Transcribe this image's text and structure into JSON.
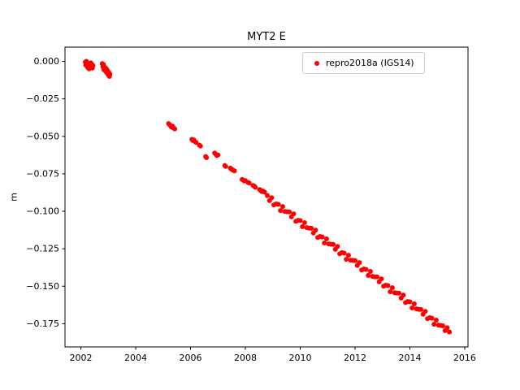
{
  "chart": {
    "title": "MYT2 E",
    "ylabel": "m",
    "xlabel": "",
    "legend_label": "repro2018a (IGS14)"
  },
  "chart_data": {
    "type": "scatter",
    "title": "MYT2 E",
    "xlabel": "",
    "ylabel": "m",
    "legend": [
      "repro2018a (IGS14)"
    ],
    "legend_position": "upper right",
    "marker_color": "#ff0000",
    "marker_radius": 3,
    "grid": false,
    "xlim": [
      2001.42,
      2016.12
    ],
    "ylim": [
      -0.1905,
      0.0095
    ],
    "x_ticks": [
      2002,
      2004,
      2006,
      2008,
      2010,
      2012,
      2014,
      2016
    ],
    "y_ticks": [
      {
        "value": 0.0,
        "label": "0.000"
      },
      {
        "value": -0.025,
        "label": "−0.025"
      },
      {
        "value": -0.05,
        "label": "−0.050"
      },
      {
        "value": -0.075,
        "label": "−0.075"
      },
      {
        "value": -0.1,
        "label": "−0.100"
      },
      {
        "value": -0.125,
        "label": "−0.125"
      },
      {
        "value": -0.15,
        "label": "−0.150"
      },
      {
        "value": -0.175,
        "label": "−0.175"
      }
    ],
    "series_name": "repro2018a (IGS14)",
    "points": [
      [
        2002.16,
        -0.0005
      ],
      [
        2002.18,
        -0.0025
      ],
      [
        2002.2,
        0.0
      ],
      [
        2002.22,
        -0.0018
      ],
      [
        2002.24,
        -0.004
      ],
      [
        2002.26,
        -0.0012
      ],
      [
        2002.28,
        -0.003
      ],
      [
        2002.3,
        -0.005
      ],
      [
        2002.32,
        -0.0022
      ],
      [
        2002.34,
        -0.0042
      ],
      [
        2002.36,
        -0.001
      ],
      [
        2002.38,
        -0.0032
      ],
      [
        2002.4,
        -0.002
      ],
      [
        2002.42,
        -0.0045
      ],
      [
        2002.44,
        -0.0028
      ],
      [
        2002.78,
        -0.0015
      ],
      [
        2002.8,
        -0.0035
      ],
      [
        2002.82,
        -0.002
      ],
      [
        2002.84,
        -0.0055
      ],
      [
        2002.86,
        -0.0038
      ],
      [
        2002.88,
        -0.006
      ],
      [
        2002.9,
        -0.0045
      ],
      [
        2002.92,
        -0.007
      ],
      [
        2002.94,
        -0.0052
      ],
      [
        2002.96,
        -0.008
      ],
      [
        2002.98,
        -0.0065
      ],
      [
        2003.0,
        -0.009
      ],
      [
        2003.02,
        -0.0075
      ],
      [
        2003.04,
        -0.01
      ],
      [
        2003.06,
        -0.0085
      ],
      [
        2005.2,
        -0.0415
      ],
      [
        2005.23,
        -0.0422
      ],
      [
        2005.26,
        -0.0428
      ],
      [
        2005.3,
        -0.0438
      ],
      [
        2005.34,
        -0.0432
      ],
      [
        2005.38,
        -0.0445
      ],
      [
        2005.42,
        -0.045
      ],
      [
        2006.05,
        -0.052
      ],
      [
        2006.08,
        -0.0528
      ],
      [
        2006.12,
        -0.0524
      ],
      [
        2006.16,
        -0.0535
      ],
      [
        2006.2,
        -0.054
      ],
      [
        2006.32,
        -0.0558
      ],
      [
        2006.36,
        -0.0565
      ],
      [
        2006.55,
        -0.0635
      ],
      [
        2006.58,
        -0.0642
      ],
      [
        2006.88,
        -0.0612
      ],
      [
        2006.92,
        -0.062
      ],
      [
        2006.96,
        -0.0628
      ],
      [
        2007.0,
        -0.0625
      ],
      [
        2007.25,
        -0.0695
      ],
      [
        2007.28,
        -0.07
      ],
      [
        2007.45,
        -0.0712
      ],
      [
        2007.48,
        -0.0718
      ],
      [
        2007.52,
        -0.0722
      ],
      [
        2007.56,
        -0.0728
      ],
      [
        2007.6,
        -0.073
      ],
      [
        2007.88,
        -0.0788
      ],
      [
        2007.92,
        -0.0792
      ],
      [
        2007.96,
        -0.0798
      ],
      [
        2008.0,
        -0.0795
      ],
      [
        2008.1,
        -0.0808
      ],
      [
        2008.14,
        -0.0812
      ],
      [
        2008.28,
        -0.0828
      ],
      [
        2008.32,
        -0.0832
      ],
      [
        2008.36,
        -0.084
      ],
      [
        2008.52,
        -0.0855
      ],
      [
        2008.56,
        -0.0862
      ],
      [
        2008.6,
        -0.0868
      ],
      [
        2008.64,
        -0.0865
      ],
      [
        2008.7,
        -0.0872
      ],
      [
        2008.8,
        -0.0896
      ],
      [
        2008.88,
        -0.0929
      ],
      [
        2008.96,
        -0.091
      ],
      [
        2009.04,
        -0.0958
      ],
      [
        2009.12,
        -0.0951
      ],
      [
        2009.2,
        -0.0954
      ],
      [
        2009.28,
        -0.0995
      ],
      [
        2009.36,
        -0.0968
      ],
      [
        2009.44,
        -0.1001
      ],
      [
        2009.52,
        -0.1003
      ],
      [
        2009.6,
        -0.1004
      ],
      [
        2009.68,
        -0.1037
      ],
      [
        2009.76,
        -0.1018
      ],
      [
        2009.84,
        -0.1067
      ],
      [
        2009.92,
        -0.106
      ],
      [
        2010.0,
        -0.1062
      ],
      [
        2010.08,
        -0.1103
      ],
      [
        2010.16,
        -0.1076
      ],
      [
        2010.24,
        -0.1109
      ],
      [
        2010.32,
        -0.1112
      ],
      [
        2010.4,
        -0.1113
      ],
      [
        2010.48,
        -0.1145
      ],
      [
        2010.56,
        -0.1126
      ],
      [
        2010.64,
        -0.1175
      ],
      [
        2010.72,
        -0.1168
      ],
      [
        2010.8,
        -0.1171
      ],
      [
        2010.88,
        -0.1212
      ],
      [
        2010.96,
        -0.1184
      ],
      [
        2011.04,
        -0.1217
      ],
      [
        2011.12,
        -0.122
      ],
      [
        2011.2,
        -0.1221
      ],
      [
        2011.28,
        -0.1254
      ],
      [
        2011.36,
        -0.1235
      ],
      [
        2011.44,
        -0.1284
      ],
      [
        2011.52,
        -0.1276
      ],
      [
        2011.6,
        -0.1279
      ],
      [
        2011.68,
        -0.132
      ],
      [
        2011.76,
        -0.1293
      ],
      [
        2011.84,
        -0.1326
      ],
      [
        2011.92,
        -0.1328
      ],
      [
        2012.0,
        -0.1329
      ],
      [
        2012.08,
        -0.1362
      ],
      [
        2012.16,
        -0.1343
      ],
      [
        2012.24,
        -0.1392
      ],
      [
        2012.32,
        -0.1385
      ],
      [
        2012.4,
        -0.1388
      ],
      [
        2012.48,
        -0.1428
      ],
      [
        2012.56,
        -0.1401
      ],
      [
        2012.64,
        -0.1434
      ],
      [
        2012.72,
        -0.1437
      ],
      [
        2012.8,
        -0.1438
      ],
      [
        2012.88,
        -0.1471
      ],
      [
        2012.96,
        -0.1451
      ],
      [
        2013.04,
        -0.15
      ],
      [
        2013.12,
        -0.1493
      ],
      [
        2013.2,
        -0.1496
      ],
      [
        2013.28,
        -0.1537
      ],
      [
        2013.36,
        -0.151
      ],
      [
        2013.44,
        -0.1543
      ],
      [
        2013.52,
        -0.1545
      ],
      [
        2013.6,
        -0.1546
      ],
      [
        2013.68,
        -0.1579
      ],
      [
        2013.76,
        -0.156
      ],
      [
        2013.84,
        -0.1609
      ],
      [
        2013.92,
        -0.1602
      ],
      [
        2014.0,
        -0.1604
      ],
      [
        2014.08,
        -0.1645
      ],
      [
        2014.16,
        -0.1618
      ],
      [
        2014.24,
        -0.1651
      ],
      [
        2014.32,
        -0.1654
      ],
      [
        2014.4,
        -0.1655
      ],
      [
        2014.48,
        -0.1687
      ],
      [
        2014.56,
        -0.1668
      ],
      [
        2014.64,
        -0.1717
      ],
      [
        2014.72,
        -0.171
      ],
      [
        2014.8,
        -0.1713
      ],
      [
        2014.88,
        -0.1754
      ],
      [
        2014.96,
        -0.1726
      ],
      [
        2015.04,
        -0.1759
      ],
      [
        2015.12,
        -0.1762
      ],
      [
        2015.2,
        -0.1764
      ],
      [
        2015.28,
        -0.1796
      ],
      [
        2015.36,
        -0.1777
      ],
      [
        2015.44,
        -0.1805
      ]
    ]
  }
}
